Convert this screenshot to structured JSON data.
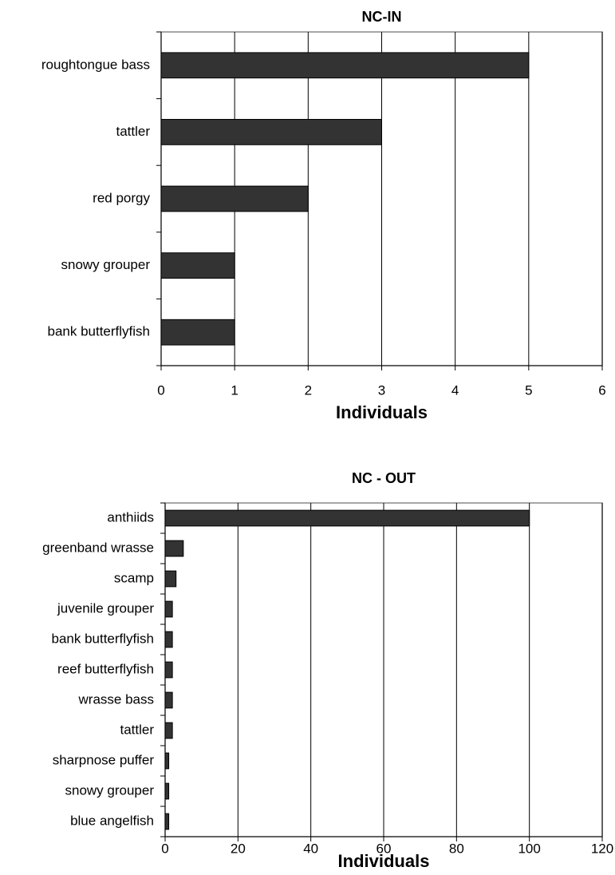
{
  "chart_data": [
    {
      "type": "bar",
      "orientation": "horizontal",
      "title": "NC-IN",
      "categories": [
        "roughtongue bass",
        "tattler",
        "red porgy",
        "snowy grouper",
        "bank butterflyfish"
      ],
      "values": [
        5,
        3,
        2,
        1,
        1
      ],
      "color": "#333333",
      "xlabel": "Individuals",
      "xlim": [
        0,
        6
      ],
      "xticks": [
        0,
        1,
        2,
        3,
        4,
        5,
        6
      ],
      "grid": true
    },
    {
      "type": "bar",
      "orientation": "horizontal",
      "title": "NC - OUT",
      "categories": [
        "anthiids",
        "greenband wrasse",
        "scamp",
        "juvenile grouper",
        "bank butterflyfish",
        "reef butterflyfish",
        "wrasse bass",
        "tattler",
        "sharpnose puffer",
        "snowy grouper",
        "blue angelfish"
      ],
      "values": [
        100,
        5,
        3,
        2,
        2,
        2,
        2,
        2,
        1,
        1,
        1
      ],
      "color": "#333333",
      "xlabel": "Individuals",
      "xlim": [
        0,
        120
      ],
      "xticks": [
        0,
        20,
        40,
        60,
        80,
        100,
        120
      ],
      "grid": true
    }
  ]
}
